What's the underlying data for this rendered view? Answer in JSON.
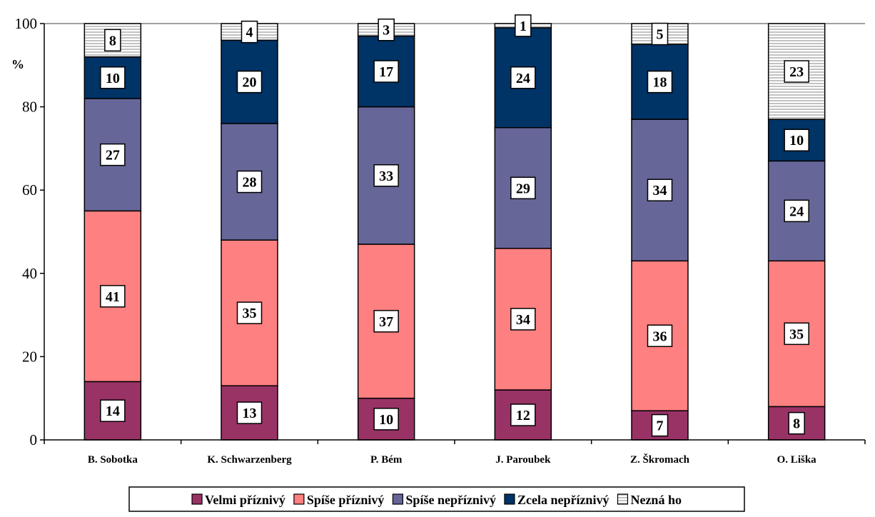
{
  "chart_data": {
    "type": "bar",
    "stacked": true,
    "title": "",
    "xlabel": "",
    "ylabel": "%",
    "ylim": [
      0,
      100
    ],
    "yticks": [
      0,
      20,
      40,
      60,
      80,
      100
    ],
    "grid": false,
    "legend_position": "bottom",
    "categories": [
      "B. Sobotka",
      "K. Schwarzenberg",
      "P. Bém",
      "J. Paroubek",
      "Z. Škromach",
      "O. Liška"
    ],
    "series": [
      {
        "name": "Velmi příznivý",
        "color": "#993366",
        "pattern": "solid",
        "values": [
          14,
          13,
          10,
          12,
          7,
          8
        ]
      },
      {
        "name": "Spíše příznivý",
        "color": "#ff8080",
        "pattern": "solid",
        "values": [
          41,
          35,
          37,
          34,
          36,
          35
        ]
      },
      {
        "name": "Spíše nepříznivý",
        "color": "#666699",
        "pattern": "solid",
        "values": [
          27,
          28,
          33,
          29,
          34,
          24
        ]
      },
      {
        "name": "Zcela nepříznivý",
        "color": "#003366",
        "pattern": "solid",
        "values": [
          10,
          20,
          17,
          24,
          18,
          10
        ]
      },
      {
        "name": "Nezná ho",
        "color": "#ffffff",
        "pattern": "horizontal-stripes",
        "values": [
          8,
          4,
          3,
          1,
          5,
          23
        ]
      }
    ]
  }
}
